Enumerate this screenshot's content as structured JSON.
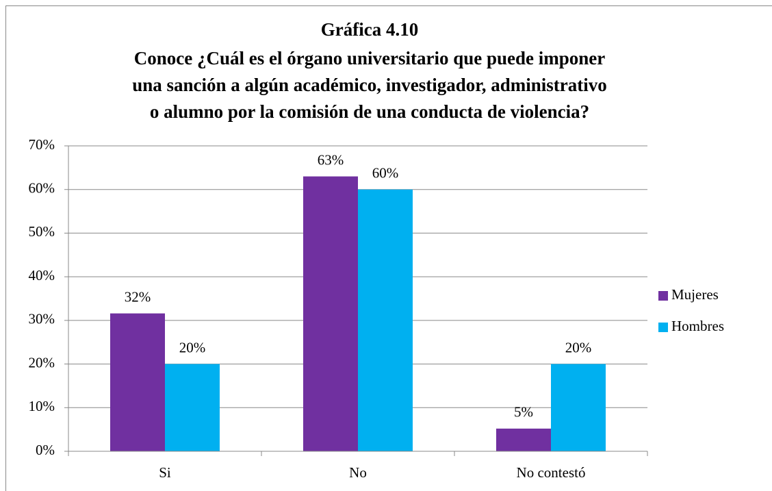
{
  "chart_data": {
    "type": "bar",
    "title": "Gráfica 4.10",
    "subtitle": [
      "Conoce ¿Cuál es el órgano universitario que puede imponer",
      "una sanción a algún académico, investigador, administrativo",
      "o alumno por la comisión de una conducta de violencia?"
    ],
    "categories": [
      "Si",
      "No",
      "No contestó"
    ],
    "series": [
      {
        "name": "Mujeres",
        "color": "#7030a0",
        "values": [
          31.6,
          63,
          5.2
        ],
        "value_labels": [
          "32%",
          "63%",
          "5%"
        ]
      },
      {
        "name": "Hombres",
        "color": "#00b0f0",
        "values": [
          20,
          60,
          20
        ],
        "value_labels": [
          "20%",
          "60%",
          "20%"
        ]
      }
    ],
    "ylim": [
      0,
      70
    ],
    "yticks": [
      {
        "value": 0,
        "label": "0%"
      },
      {
        "value": 10,
        "label": "10%"
      },
      {
        "value": 20,
        "label": "20%"
      },
      {
        "value": 30,
        "label": "30%"
      },
      {
        "value": 40,
        "label": "40%"
      },
      {
        "value": 50,
        "label": "50%"
      },
      {
        "value": 60,
        "label": "60%"
      },
      {
        "value": 70,
        "label": "70%"
      }
    ],
    "grid": true,
    "legend": "right"
  }
}
